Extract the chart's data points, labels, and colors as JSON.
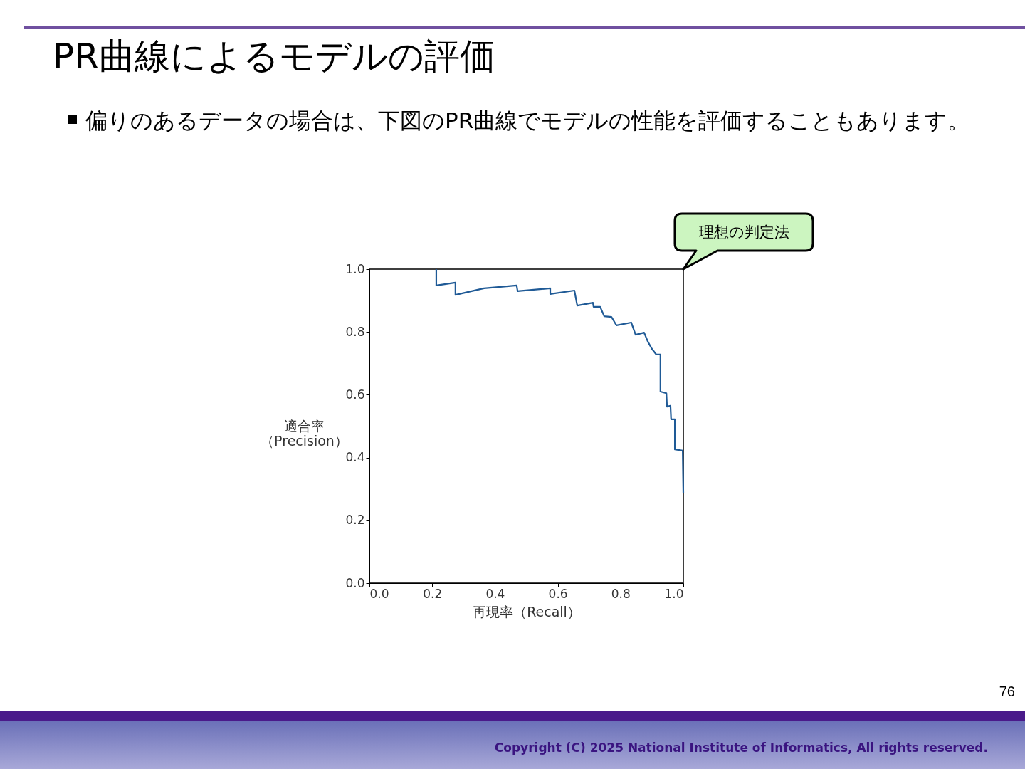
{
  "chart_data": {
    "type": "line",
    "title": "PR曲線によるモデルの評価",
    "subtitle": "偏りのあるデータの場合は、下図のPR曲線でモデルの性能を評価することもあります。",
    "xlabel": "再現率（Recall）",
    "ylabel": "適合率（Precision）",
    "series": [
      {
        "color": "#1f5a96",
        "x": [
          0.213,
          0.213,
          0.274,
          0.274,
          0.365,
          0.469,
          0.472,
          0.576,
          0.576,
          0.653,
          0.662,
          0.712,
          0.714,
          0.735,
          0.748,
          0.771,
          0.787,
          0.834,
          0.848,
          0.875,
          0.887,
          0.9,
          0.914,
          0.927,
          0.927,
          0.946,
          0.948,
          0.959,
          0.961,
          0.973,
          0.973,
          0.998,
          1.0
        ],
        "values": [
          1.0,
          0.948,
          0.957,
          0.918,
          0.939,
          0.948,
          0.93,
          0.939,
          0.921,
          0.932,
          0.884,
          0.893,
          0.88,
          0.88,
          0.85,
          0.848,
          0.821,
          0.83,
          0.791,
          0.798,
          0.769,
          0.746,
          0.728,
          0.728,
          0.61,
          0.605,
          0.562,
          0.565,
          0.522,
          0.522,
          0.426,
          0.422,
          0.286
        ]
      }
    ],
    "xlim": [
      0,
      1
    ],
    "ylim": [
      0,
      1
    ],
    "xticks": [
      {
        "value": 0,
        "label": "0.0"
      },
      0.2,
      0.4,
      0.6,
      0.8,
      {
        "value": 1,
        "label": "1.0"
      }
    ],
    "yticks": [
      {
        "value": 0,
        "label": "0.0"
      },
      0.2,
      0.4,
      0.6,
      0.8,
      {
        "value": 1,
        "label": "1.0"
      }
    ],
    "line_style": "solid",
    "annotations": [
      "理想の判定法",
      "76",
      "Copyright (C) 2025 National Institute of Informatics, All rights reserved."
    ]
  }
}
